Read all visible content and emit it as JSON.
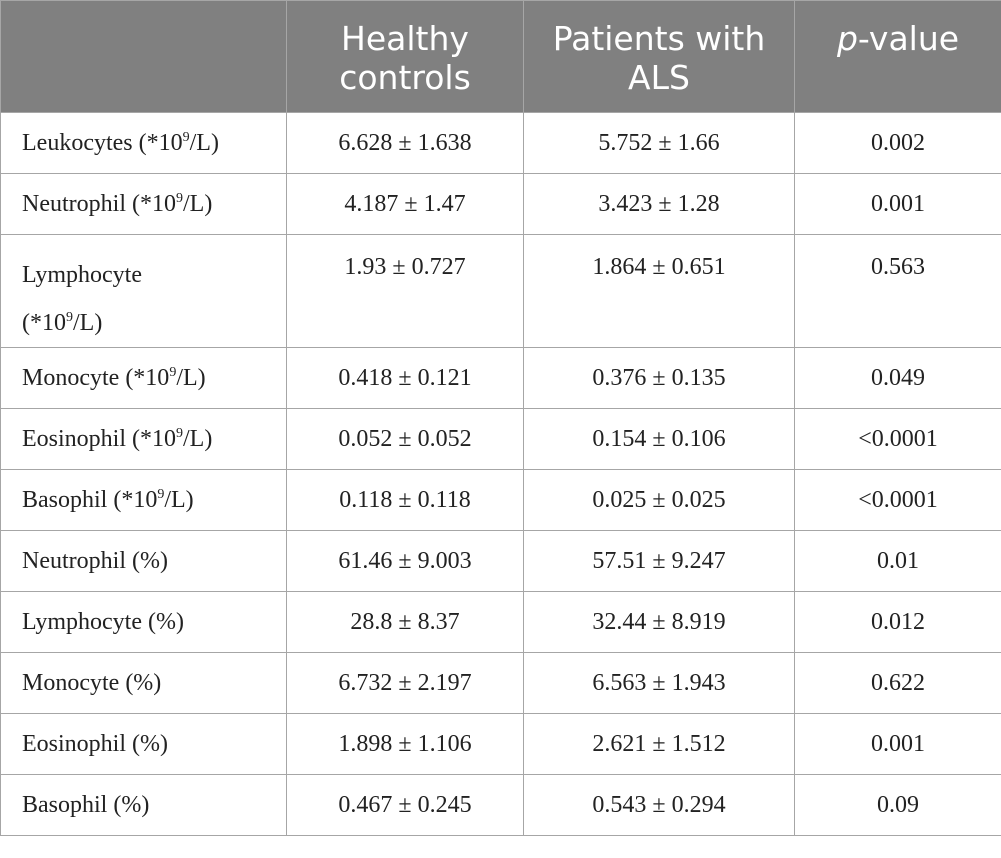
{
  "table": {
    "headers": {
      "col1": "",
      "col2_line1": "Healthy",
      "col2_line2": "controls",
      "col3_line1": "Patients with",
      "col3_line2": "ALS",
      "col4_italic": "p",
      "col4_rest": "-value"
    },
    "unit_sup": "9",
    "rows": [
      {
        "label_pre": "Leukocytes (*10",
        "label_post": "/L)",
        "healthy": "6.628 ± 1.638",
        "als": "5.752 ± 1.66",
        "p": "0.002"
      },
      {
        "label_pre": "Neutrophil (*10",
        "label_post": "/L)",
        "healthy": "4.187 ± 1.47",
        "als": "3.423 ± 1.28",
        "p": "0.001"
      },
      {
        "label_line1": "Lymphocyte",
        "label_pre": "(*10",
        "label_post": "/L)",
        "healthy": "1.93 ± 0.727",
        "als": "1.864 ± 0.651",
        "p": "0.563"
      },
      {
        "label_pre": "Monocyte (*10",
        "label_post": "/L)",
        "healthy": "0.418 ± 0.121",
        "als": "0.376 ± 0.135",
        "p": "0.049"
      },
      {
        "label_pre": "Eosinophil (*10",
        "label_post": "/L)",
        "healthy": "0.052 ± 0.052",
        "als": "0.154 ± 0.106",
        "p": "<0.0001"
      },
      {
        "label_pre": "Basophil (*10",
        "label_post": "/L)",
        "healthy": "0.118 ± 0.118",
        "als": "0.025 ± 0.025",
        "p": "<0.0001"
      },
      {
        "label": "Neutrophil (%)",
        "healthy": "61.46 ± 9.003",
        "als": "57.51 ± 9.247",
        "p": "0.01"
      },
      {
        "label": "Lymphocyte (%)",
        "healthy": "28.8 ± 8.37",
        "als": "32.44 ± 8.919",
        "p": "0.012"
      },
      {
        "label": "Monocyte (%)",
        "healthy": "6.732 ± 2.197",
        "als": "6.563 ± 1.943",
        "p": "0.622"
      },
      {
        "label": "Eosinophil (%)",
        "healthy": "1.898 ± 1.106",
        "als": "2.621 ± 1.512",
        "p": "0.001"
      },
      {
        "label": "Basophil (%)",
        "healthy": "0.467 ± 0.245",
        "als": "0.543 ± 0.294",
        "p": "0.09"
      }
    ]
  }
}
